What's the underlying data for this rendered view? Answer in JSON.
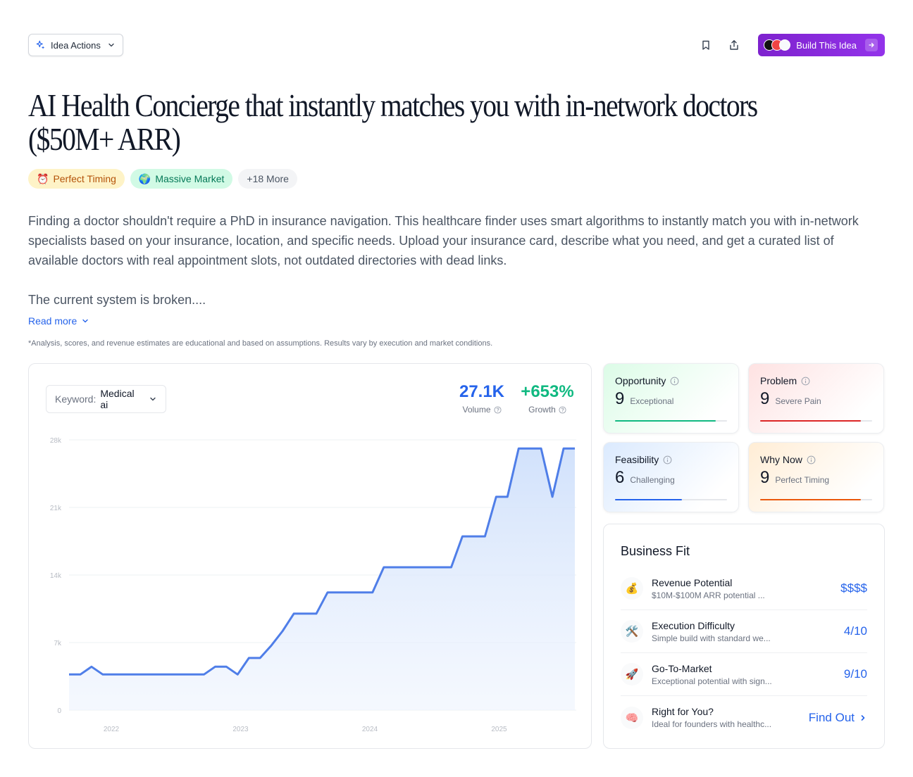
{
  "header": {
    "idea_actions_label": "Idea Actions",
    "build_label": "Build This Idea",
    "icons": [
      "sparkle-icon",
      "chevron-down-icon",
      "bookmark-icon",
      "share-icon",
      "arrow-right-icon"
    ]
  },
  "idea": {
    "title": "AI Health Concierge that instantly matches you with in-network doctors ($50M+ ARR)",
    "tags": [
      {
        "emoji": "⏰",
        "label": "Perfect Timing"
      },
      {
        "emoji": "🌍",
        "label": "Massive Market"
      },
      {
        "label": "+18 More"
      }
    ],
    "description": [
      "Finding a doctor shouldn't require a PhD in insurance navigation. This healthcare finder uses smart algorithms to instantly match you with in-network specialists based on your insurance, location, and specific needs. Upload your insurance card, describe what you need, and get a curated list of available doctors with real appointment slots, not outdated directories with dead links.",
      "The current system is broken...."
    ],
    "read_more": "Read more",
    "disclaimer": "*Analysis, scores, and revenue estimates are educational and based on assumptions. Results vary by execution and market conditions."
  },
  "trend": {
    "keyword_label": "Keyword:",
    "keyword_value": "Medical ai",
    "volume": "27.1K",
    "volume_label": "Volume",
    "growth": "+653%",
    "growth_label": "Growth"
  },
  "chart_data": {
    "type": "area",
    "x_ticks": [
      "2022",
      "2023",
      "2024",
      "2025"
    ],
    "y_ticks": [
      "0",
      "7k",
      "14k",
      "21k",
      "28k"
    ],
    "ylim": [
      0,
      28000
    ],
    "line_color": "#4f7ee8",
    "fill_color": "#dbeafe",
    "grid": true,
    "values": [
      3700,
      3700,
      4500,
      3700,
      3700,
      3700,
      3700,
      3700,
      3700,
      3700,
      3700,
      3700,
      3700,
      4500,
      4500,
      3700,
      5400,
      5400,
      6700,
      8200,
      10000,
      10000,
      10000,
      12200,
      12200,
      12200,
      12200,
      12200,
      14800,
      14800,
      14800,
      14800,
      14800,
      14800,
      14800,
      18000,
      18000,
      18000,
      22100,
      22100,
      27100,
      27100,
      27100,
      22100,
      27100,
      27100
    ]
  },
  "scores": [
    {
      "title": "Opportunity",
      "value": "9",
      "desc": "Exceptional",
      "color": "#10b981",
      "fill": 0.9
    },
    {
      "title": "Problem",
      "value": "9",
      "desc": "Severe Pain",
      "color": "#dc2626",
      "fill": 0.9
    },
    {
      "title": "Feasibility",
      "value": "6",
      "desc": "Challenging",
      "color": "#2563eb",
      "fill": 0.6
    },
    {
      "title": "Why Now",
      "value": "9",
      "desc": "Perfect Timing",
      "color": "#ea580c",
      "fill": 0.9
    }
  ],
  "business_fit": {
    "title": "Business Fit",
    "rows": [
      {
        "icon": "💰",
        "icon_name": "money-bag-icon",
        "name": "Revenue Potential",
        "sub": "$10M-$100M ARR potential ...",
        "value": "$$$$"
      },
      {
        "icon": "🛠️",
        "icon_name": "tools-icon",
        "name": "Execution Difficulty",
        "sub": "Simple build with standard we...",
        "value": "4/10"
      },
      {
        "icon": "🚀",
        "icon_name": "rocket-icon",
        "name": "Go-To-Market",
        "sub": "Exceptional potential with sign...",
        "value": "9/10"
      },
      {
        "icon": "🧠",
        "icon_name": "brain-icon",
        "name": "Right for You?",
        "sub": "Ideal for founders with healthc...",
        "value": "Find Out"
      }
    ]
  }
}
